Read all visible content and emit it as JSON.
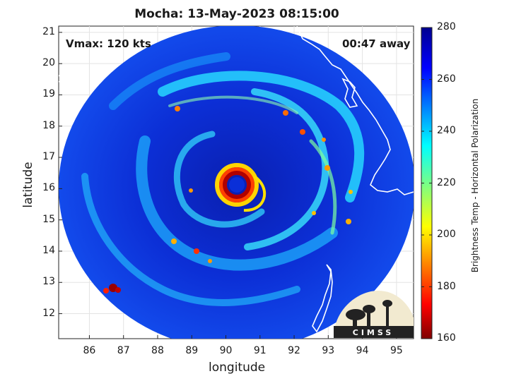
{
  "title": "Mocha: 13-May-2023 08:15:00",
  "vmax_text": "Vmax: 120 kts",
  "away_text": "00:47 away",
  "axes": {
    "xlabel": "longitude",
    "ylabel": "latitude",
    "x_range": [
      85.1,
      95.5
    ],
    "y_range": [
      11.2,
      21.2
    ],
    "x_ticks": [
      86,
      87,
      88,
      89,
      90,
      91,
      92,
      93,
      94,
      95
    ],
    "y_ticks": [
      12,
      13,
      14,
      15,
      16,
      17,
      18,
      19,
      20,
      21
    ],
    "grid": true
  },
  "colorbar": {
    "label": "Brightness Temp - Horizontal Polarization",
    "range": [
      160,
      280
    ],
    "ticks": [
      160,
      180,
      200,
      220,
      240,
      260,
      280
    ],
    "colormap": [
      "#7f0000",
      "#ff0000",
      "#ffff00",
      "#00ffff",
      "#0000ff",
      "#00008f"
    ]
  },
  "storm": {
    "eye_center_lon": 90.3,
    "eye_center_lat": 16.2
  },
  "logo_text": "CIMSS",
  "colors": {
    "land_coast": "#ffffff",
    "swath_background": "#0a2fd8",
    "eyewall": "#c00000"
  }
}
